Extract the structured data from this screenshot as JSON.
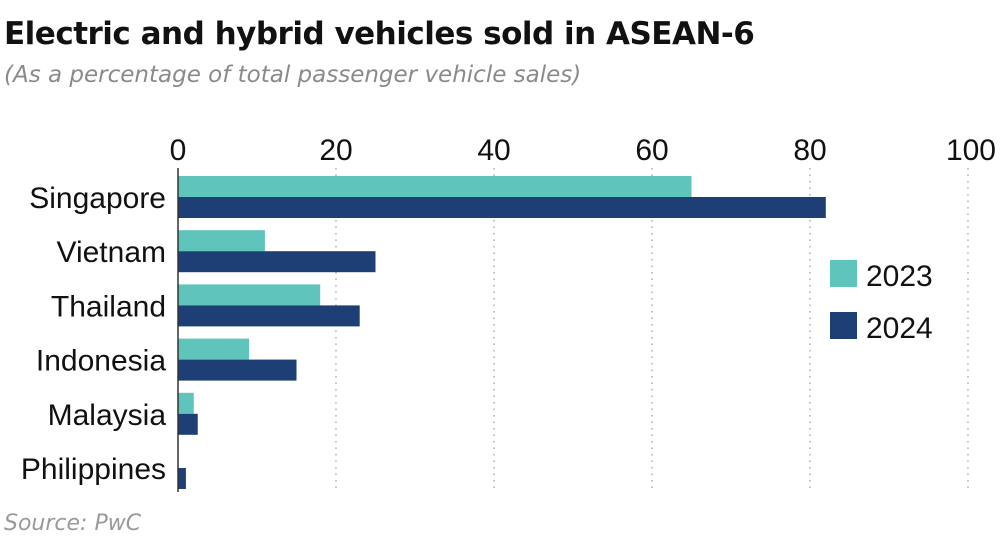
{
  "chart_data": {
    "type": "bar",
    "orientation": "horizontal",
    "title": "Electric and hybrid vehicles sold in ASEAN-6",
    "subtitle": "(As a percentage of total passenger vehicle sales)",
    "source": "Source: PwC",
    "categories": [
      "Singapore",
      "Vietnam",
      "Thailand",
      "Indonesia",
      "Malaysia",
      "Philippines"
    ],
    "series": [
      {
        "name": "2023",
        "color": "#5ec4bc",
        "values": [
          65,
          11,
          18,
          9,
          2,
          0
        ]
      },
      {
        "name": "2024",
        "color": "#1d3f76",
        "values": [
          82,
          25,
          23,
          15,
          2.5,
          1
        ]
      }
    ],
    "xticks": [
      0,
      20,
      40,
      60,
      80,
      100
    ],
    "tick_labels": [
      "0",
      "20",
      "40",
      "60",
      "80",
      "100"
    ],
    "xlim": [
      0,
      100
    ],
    "xlabel": "",
    "ylabel": "",
    "grid": "vertical dotted",
    "legend_position": "right"
  }
}
